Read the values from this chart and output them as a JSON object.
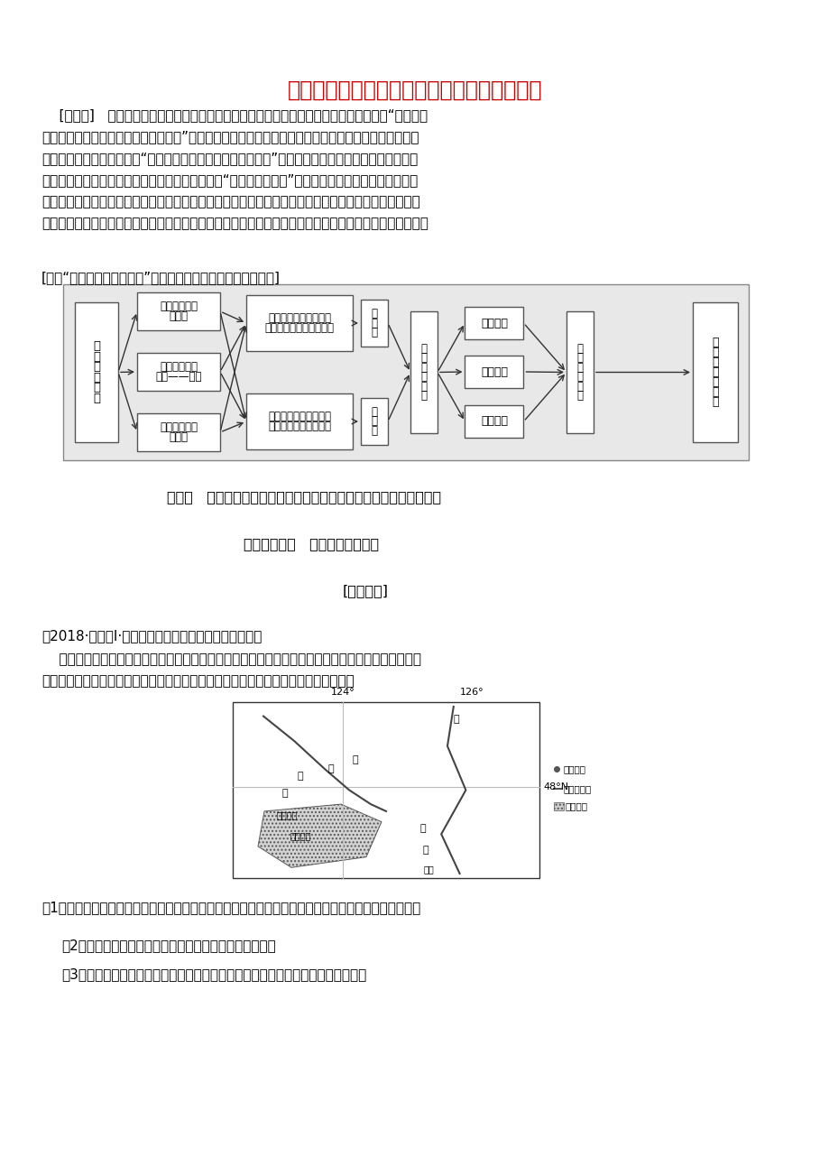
{
  "title": "运用整体性与差异性思维，统筹分析人类活动",
  "title_color": "#CC0000",
  "bg_color": "#FFFFFF",
  "section1": "视角一   运用整体性与差异性思维，着眼于自然地理环境，看环境变迁",
  "section2": "知识点（一）   地理环境的整体性",
  "section3": "[典题示例]",
  "exam_text1": "（2018·全国卷Ⅰ·节选）阅读图文资料，完成下列要求。",
  "q1": "（1）分析从乌裕尔河成为内流河至扎龙湿地面积稳定，乌裕尔河流域降水量、蒸发量数量关系的变化。",
  "q2": "（2）指出未来扎龙湿地水中含盐量的变化，并说明原因。",
  "q3": "（3）有人建议，通过工程措施恢复乌裕尔河为外流河。你是否同意，并说明理由。"
}
